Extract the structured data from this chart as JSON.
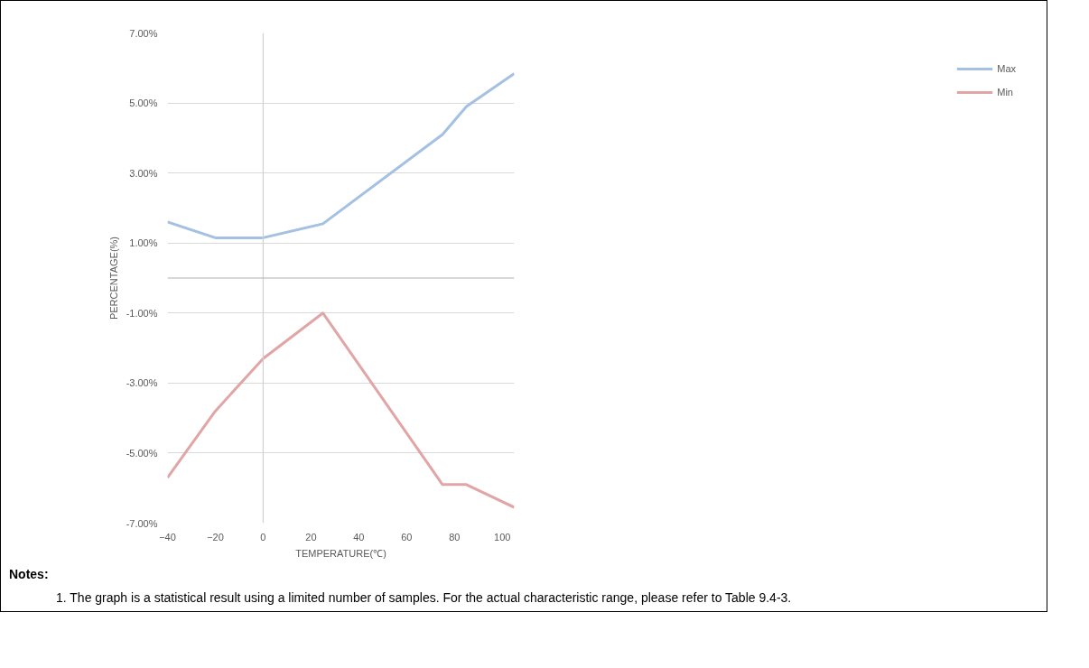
{
  "chart_data": {
    "type": "line",
    "xlabel": "TEMPERATURE(℃)",
    "ylabel": "PERCENTAGE(%)",
    "x": [
      -40,
      -20,
      0,
      25,
      75,
      85,
      105
    ],
    "series": [
      {
        "name": "Max",
        "color": "#a4c0e2",
        "values": [
          1.6,
          1.15,
          1.15,
          1.55,
          4.1,
          4.9,
          5.84
        ]
      },
      {
        "name": "Min",
        "color": "#e2a5a5",
        "values": [
          -5.7,
          -3.8,
          -2.3,
          -1.0,
          -5.9,
          -5.9,
          -6.55
        ]
      }
    ],
    "xlim": [
      -40,
      105
    ],
    "xticks": [
      -40,
      -20,
      0,
      20,
      40,
      60,
      80,
      100
    ],
    "ylim": [
      -7,
      7
    ],
    "yticks": [
      {
        "value": 7,
        "label": "7.00%"
      },
      {
        "value": 5,
        "label": "5.00%"
      },
      {
        "value": 3,
        "label": "3.00%"
      },
      {
        "value": 1,
        "label": "1.00%"
      },
      {
        "value": -1,
        "label": "-1.00%"
      },
      {
        "value": -3,
        "label": "-3.00%"
      },
      {
        "value": -5,
        "label": "-5.00%"
      },
      {
        "value": -7,
        "label": "-7.00%"
      }
    ],
    "grid": "y",
    "legend": "right",
    "line_style": "solid",
    "marker": "none",
    "ref_lines": [
      {
        "axis": "x",
        "value": 0,
        "color": "#d0d0d0"
      },
      {
        "axis": "y",
        "value": 0,
        "color": "#b0b0b0"
      }
    ],
    "annotations": [
      "Notes:",
      "1. The graph is a statistical result using a limited number of samples. For the actual characteristic range, please refer to Table 9.4-3."
    ]
  }
}
